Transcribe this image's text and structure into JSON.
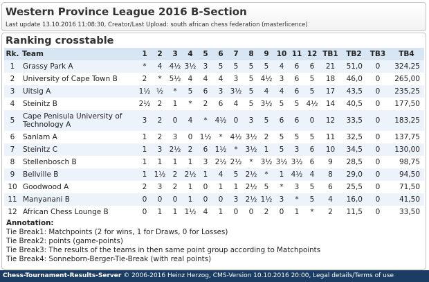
{
  "header": {
    "title": "Western Province League 2016 B-Section",
    "subtitle": "Last update 13.10.2016 11:08:30, Creator/Last Upload: south african chess federation (masterlicence)"
  },
  "section_title": "Ranking crosstable",
  "table": {
    "headers": [
      "Rk.",
      "Team",
      "1",
      "2",
      "3",
      "4",
      "5",
      "6",
      "7",
      "8",
      "9",
      "10",
      "11",
      "12",
      "TB1",
      "TB2",
      "TB3",
      "TB4"
    ],
    "rows": [
      {
        "rk": "1",
        "team": "Grassy Park A",
        "cells": [
          "*",
          "4",
          "4½",
          "3½",
          "3",
          "5",
          "5",
          "5",
          "5",
          "4",
          "6",
          "6"
        ],
        "tb1": "21",
        "tb2": "51,0",
        "tb3": "0",
        "tb4": "324,25"
      },
      {
        "rk": "2",
        "team": "University of Cape Town B",
        "cells": [
          "2",
          "*",
          "5½",
          "4",
          "4",
          "4",
          "3",
          "5",
          "4½",
          "3",
          "6",
          "5"
        ],
        "tb1": "18",
        "tb2": "46,0",
        "tb3": "0",
        "tb4": "265,00"
      },
      {
        "rk": "3",
        "team": "Uitsig A",
        "cells": [
          "1½",
          "½",
          "*",
          "5",
          "6",
          "3",
          "3½",
          "5",
          "4",
          "4",
          "6",
          "5"
        ],
        "tb1": "17",
        "tb2": "43,5",
        "tb3": "0",
        "tb4": "235,25"
      },
      {
        "rk": "4",
        "team": "Steinitz B",
        "cells": [
          "2½",
          "2",
          "1",
          "*",
          "2",
          "6",
          "4",
          "5",
          "3½",
          "5",
          "5",
          "4½"
        ],
        "tb1": "14",
        "tb2": "40,5",
        "tb3": "0",
        "tb4": "177,50"
      },
      {
        "rk": "5",
        "team": "Cape Penisula University of Technology A",
        "cells": [
          "3",
          "2",
          "0",
          "4",
          "*",
          "4½",
          "0",
          "3",
          "5",
          "6",
          "6",
          "0"
        ],
        "tb1": "12",
        "tb2": "33,5",
        "tb3": "0",
        "tb4": "183,25"
      },
      {
        "rk": "6",
        "team": "Sanlam A",
        "cells": [
          "1",
          "2",
          "3",
          "0",
          "1½",
          "*",
          "4½",
          "3½",
          "2",
          "5",
          "5",
          "5"
        ],
        "tb1": "11",
        "tb2": "32,5",
        "tb3": "0",
        "tb4": "137,75"
      },
      {
        "rk": "7",
        "team": "Steinitz C",
        "cells": [
          "1",
          "3",
          "2½",
          "2",
          "6",
          "1½",
          "*",
          "3½",
          "1",
          "5",
          "3",
          "6"
        ],
        "tb1": "10",
        "tb2": "34,5",
        "tb3": "0",
        "tb4": "130,00"
      },
      {
        "rk": "8",
        "team": "Stellenbosch B",
        "cells": [
          "1",
          "1",
          "1",
          "1",
          "3",
          "2½",
          "2½",
          "*",
          "3½",
          "3½",
          "3½",
          "6"
        ],
        "tb1": "9",
        "tb2": "28,5",
        "tb3": "0",
        "tb4": "98,75"
      },
      {
        "rk": "9",
        "team": "Bellville B",
        "cells": [
          "1",
          "1½",
          "2",
          "2½",
          "1",
          "4",
          "5",
          "2½",
          "*",
          "1",
          "4½",
          "4"
        ],
        "tb1": "8",
        "tb2": "29,0",
        "tb3": "0",
        "tb4": "94,50"
      },
      {
        "rk": "10",
        "team": "Goodwood A",
        "cells": [
          "2",
          "3",
          "2",
          "1",
          "0",
          "1",
          "1",
          "2½",
          "5",
          "*",
          "3",
          "5"
        ],
        "tb1": "6",
        "tb2": "25,5",
        "tb3": "0",
        "tb4": "71,50"
      },
      {
        "rk": "11",
        "team": "Manyanani B",
        "cells": [
          "0",
          "0",
          "0",
          "1",
          "0",
          "0",
          "3",
          "2½",
          "1½",
          "3",
          "*",
          "5"
        ],
        "tb1": "4",
        "tb2": "16,0",
        "tb3": "0",
        "tb4": "41,50"
      },
      {
        "rk": "12",
        "team": "African Chess Lounge B",
        "cells": [
          "0",
          "1",
          "1",
          "1½",
          "4",
          "1",
          "0",
          "0",
          "2",
          "0",
          "1",
          "*"
        ],
        "tb1": "2",
        "tb2": "11,5",
        "tb3": "0",
        "tb4": "33,50"
      }
    ]
  },
  "annotation": {
    "title": "Annotation:",
    "lines": [
      "Tie Break1: Matchpoints (2 for wins, 1 for Draws, 0 for Losses)",
      "Tie Break2: points (game-points)",
      "Tie Break3: The results of the teams in then same point group according to Matchpoints",
      "Tie Break4: Sonneborn-Berger-Tie-Break (with real points)"
    ]
  },
  "footer": {
    "brand": "Chess-Tournament-Results-Server",
    "text": " © 2006-2016 Heinz Herzog, CMS-Version 10.10.2016 20:00, Legal details/Terms of use"
  }
}
